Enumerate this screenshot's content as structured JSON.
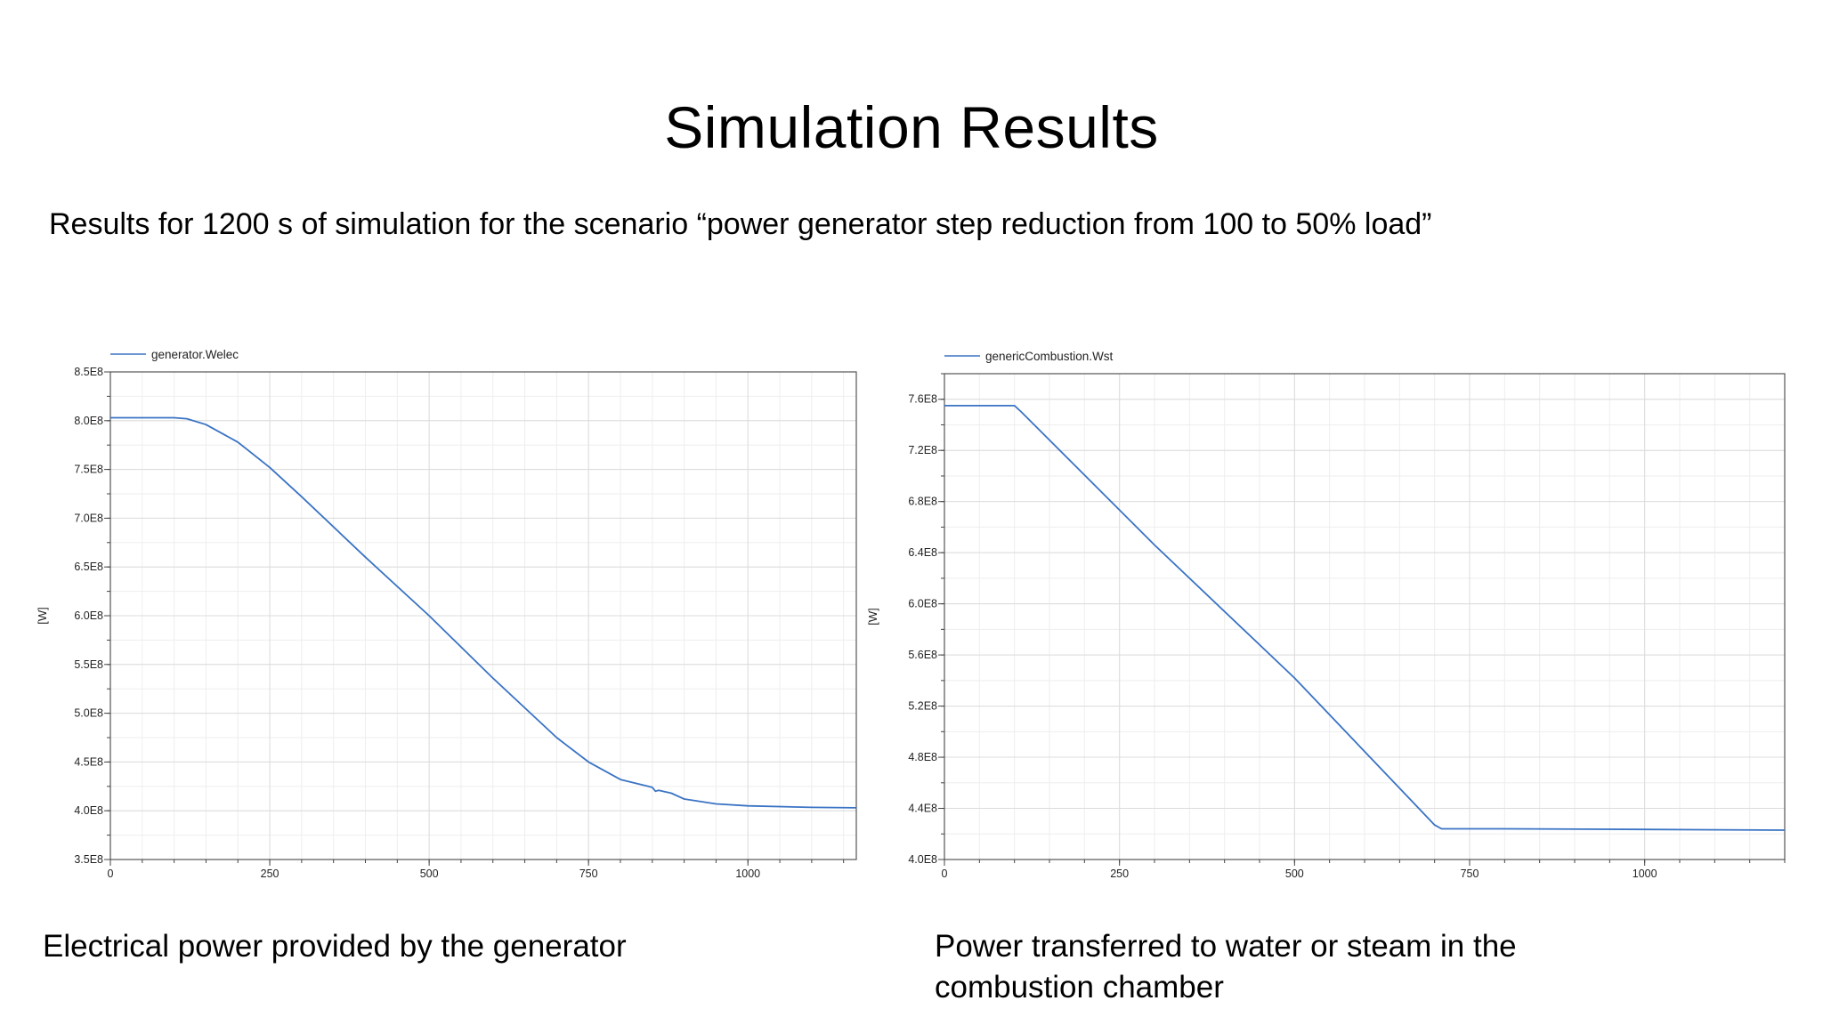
{
  "slide": {
    "title": "Simulation Results",
    "subtitle": "Results for 1200 s of simulation for the scenario “power generator step reduction from 100 to 50% load”",
    "caption_left": "Electrical power provided by the generator",
    "caption_right": "Power transferred to water or steam in the combustion chamber"
  },
  "chart_data": [
    {
      "type": "line",
      "title": "",
      "xlabel": "",
      "ylabel": "[W]",
      "xlim": [
        0,
        1170
      ],
      "ylim": [
        350000000,
        850000000
      ],
      "grid": true,
      "legend_position": "top-left",
      "x_ticks": [
        0,
        250,
        500,
        750,
        1000
      ],
      "x_tick_labels": [
        "0",
        "250",
        "500",
        "750",
        "1000"
      ],
      "y_ticks": [
        350000000,
        400000000,
        450000000,
        500000000,
        550000000,
        600000000,
        650000000,
        700000000,
        750000000,
        800000000,
        850000000
      ],
      "y_tick_labels": [
        "3.5E8",
        "4.0E8",
        "4.5E8",
        "5.0E8",
        "5.5E8",
        "6.0E8",
        "6.5E8",
        "7.0E8",
        "7.5E8",
        "8.0E8",
        "8.5E8"
      ],
      "series": [
        {
          "name": "generator.Welec",
          "color": "#3a73c4",
          "x": [
            0,
            100,
            120,
            150,
            200,
            250,
            300,
            400,
            500,
            600,
            700,
            750,
            800,
            850,
            855,
            860,
            880,
            900,
            950,
            1000,
            1100,
            1170
          ],
          "y": [
            803000000,
            803000000,
            802000000,
            796000000,
            778000000,
            752000000,
            722000000,
            660000000,
            600000000,
            536000000,
            475000000,
            450000000,
            432000000,
            424000000,
            420000000,
            421000000,
            418000000,
            412000000,
            407000000,
            405000000,
            403500000,
            403000000
          ]
        }
      ]
    },
    {
      "type": "line",
      "title": "",
      "xlabel": "",
      "ylabel": "[W]",
      "xlim": [
        0,
        1200
      ],
      "ylim": [
        400000000,
        780000000
      ],
      "grid": true,
      "legend_position": "top-left",
      "x_ticks": [
        0,
        250,
        500,
        750,
        1000
      ],
      "x_tick_labels": [
        "0",
        "250",
        "500",
        "750",
        "1000"
      ],
      "y_ticks": [
        400000000,
        440000000,
        480000000,
        520000000,
        560000000,
        600000000,
        640000000,
        680000000,
        720000000,
        760000000
      ],
      "y_tick_labels": [
        "4.0E8",
        "4.4E8",
        "4.8E8",
        "5.2E8",
        "5.6E8",
        "6.0E8",
        "6.4E8",
        "6.8E8",
        "7.2E8",
        "7.6E8"
      ],
      "series": [
        {
          "name": "genericCombustion.Wst",
          "color": "#3a73c4",
          "x": [
            0,
            100,
            110,
            300,
            500,
            700,
            710,
            800,
            1000,
            1200
          ],
          "y": [
            755000000,
            755000000,
            750000000,
            646000000,
            542000000,
            427000000,
            424000000,
            424000000,
            423500000,
            423000000
          ]
        }
      ]
    }
  ]
}
